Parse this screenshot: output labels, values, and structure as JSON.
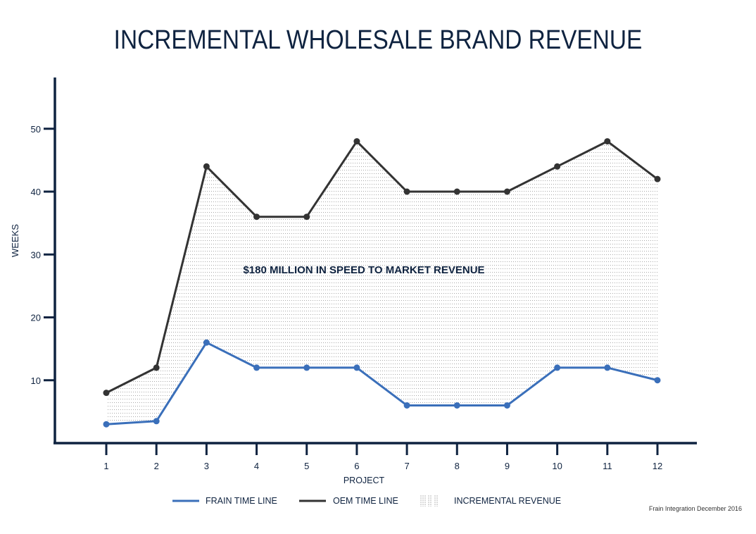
{
  "title": "INCREMENTAL WHOLESALE BRAND REVENUE",
  "annotation": "$180 MILLION IN SPEED TO MARKET REVENUE",
  "credit": "Frain Integration December 2016",
  "colors": {
    "navy": "#0f2340",
    "frain": "#3a6fba",
    "oem": "#333333",
    "fill_dots": "#9a9a9a"
  },
  "legend": [
    {
      "label": "FRAIN TIME LINE",
      "kind": "line",
      "color": "#3a6fba"
    },
    {
      "label": "OEM TIME LINE",
      "kind": "line",
      "color": "#333333"
    },
    {
      "label": "INCREMENTAL REVENUE",
      "kind": "pattern",
      "color": "#9a9a9a"
    }
  ],
  "chart_data": {
    "type": "line",
    "title": "INCREMENTAL WHOLESALE BRAND REVENUE",
    "xlabel": "PROJECT",
    "ylabel": "WEEKS",
    "x": [
      1,
      2,
      3,
      4,
      5,
      6,
      7,
      8,
      9,
      10,
      11,
      12
    ],
    "yticks": [
      10,
      20,
      30,
      40,
      50
    ],
    "ylim": [
      0,
      55
    ],
    "grid": false,
    "legend_position": "bottom",
    "series": [
      {
        "name": "FRAIN TIME LINE",
        "values": [
          3,
          3.5,
          16,
          12,
          12,
          12,
          6,
          6,
          6,
          12,
          12,
          10
        ]
      },
      {
        "name": "OEM TIME LINE",
        "values": [
          8,
          12,
          44,
          36,
          36,
          48,
          40,
          40,
          40,
          44,
          48,
          42
        ]
      }
    ],
    "area": {
      "name": "INCREMENTAL REVENUE",
      "between": [
        "FRAIN TIME LINE",
        "OEM TIME LINE"
      ]
    },
    "annotations": [
      {
        "text": "$180 MILLION IN SPEED TO MARKET REVENUE",
        "x": 6,
        "y": 28
      }
    ]
  }
}
